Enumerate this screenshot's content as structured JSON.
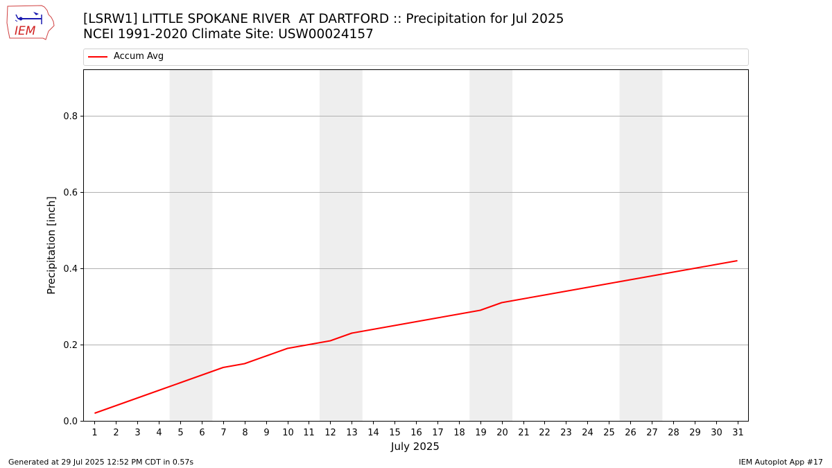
{
  "header": {
    "title_line1": "[LSRW1] LITTLE SPOKANE RIVER  AT DARTFORD :: Precipitation for Jul 2025",
    "title_line2": "NCEI 1991-2020 Climate Site: USW00024157"
  },
  "logo": {
    "text": "IEM"
  },
  "footer": {
    "left": "Generated at 29 Jul 2025 12:52 PM CDT in 0.57s",
    "right": "IEM Autoplot App #17"
  },
  "colors": {
    "series": "#ff0000",
    "weekend_band": "#eeeeee",
    "grid": "#b0b0b0"
  },
  "chart_data": {
    "type": "line",
    "title": "[LSRW1] LITTLE SPOKANE RIVER  AT DARTFORD :: Precipitation for Jul 2025",
    "subtitle": "NCEI 1991-2020 Climate Site: USW00024157",
    "xlabel": "July 2025",
    "ylabel": "Precipitation [inch]",
    "xlim": [
      0.5,
      31.5
    ],
    "ylim": [
      0,
      0.92
    ],
    "yticks": [
      0.0,
      0.2,
      0.4,
      0.6,
      0.8
    ],
    "ytick_labels": [
      "0.0",
      "0.2",
      "0.4",
      "0.6",
      "0.8"
    ],
    "xticks": [
      1,
      2,
      3,
      4,
      5,
      6,
      7,
      8,
      9,
      10,
      11,
      12,
      13,
      14,
      15,
      16,
      17,
      18,
      19,
      20,
      21,
      22,
      23,
      24,
      25,
      26,
      27,
      28,
      29,
      30,
      31
    ],
    "grid": "horizontal",
    "legend_position": "top",
    "shaded_day_ranges": [
      [
        5,
        6
      ],
      [
        12,
        13
      ],
      [
        19,
        20
      ],
      [
        26,
        27
      ]
    ],
    "series": [
      {
        "name": "Accum Avg",
        "x": [
          1,
          2,
          3,
          4,
          5,
          6,
          7,
          8,
          9,
          10,
          11,
          12,
          13,
          14,
          15,
          16,
          17,
          18,
          19,
          20,
          21,
          22,
          23,
          24,
          25,
          26,
          27,
          28,
          29,
          30,
          31
        ],
        "values": [
          0.02,
          0.04,
          0.06,
          0.08,
          0.1,
          0.12,
          0.14,
          0.15,
          0.17,
          0.19,
          0.2,
          0.21,
          0.23,
          0.24,
          0.25,
          0.26,
          0.27,
          0.28,
          0.29,
          0.31,
          0.32,
          0.33,
          0.34,
          0.35,
          0.36,
          0.37,
          0.38,
          0.39,
          0.4,
          0.41,
          0.42
        ]
      }
    ]
  }
}
